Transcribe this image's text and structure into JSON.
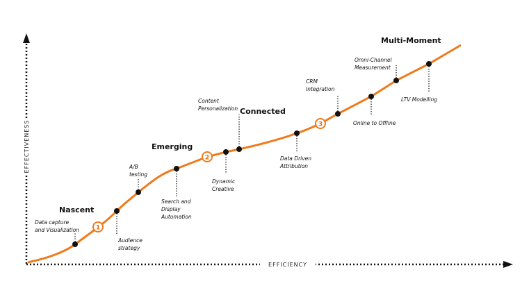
{
  "axes": {
    "y": "EFFECTIVENESS",
    "x": "EFFICIENCY"
  },
  "stages": [
    "Nascent",
    "Emerging",
    "Connected",
    "Multi-Moment"
  ],
  "steps": [
    "1",
    "2",
    "3"
  ],
  "milestones": [
    {
      "label": [
        "Data capture",
        "and  Visualization"
      ]
    },
    {
      "label": [
        "Audience",
        "strategy"
      ]
    },
    {
      "label": [
        "A/B",
        "testing"
      ]
    },
    {
      "label": [
        "Search and",
        "Display",
        "Automation"
      ]
    },
    {
      "label": [
        "Dynamic",
        "Creative"
      ]
    },
    {
      "label": [
        "Content",
        "Personalization"
      ]
    },
    {
      "label": [
        "Data Driven",
        "Attribution"
      ]
    },
    {
      "label": [
        "CRM",
        "Integration"
      ]
    },
    {
      "label": [
        "Online  to  Offline"
      ]
    },
    {
      "label": [
        "Omni-Channel",
        "Measurement"
      ]
    },
    {
      "label": [
        "LTV Modelling"
      ]
    }
  ]
}
